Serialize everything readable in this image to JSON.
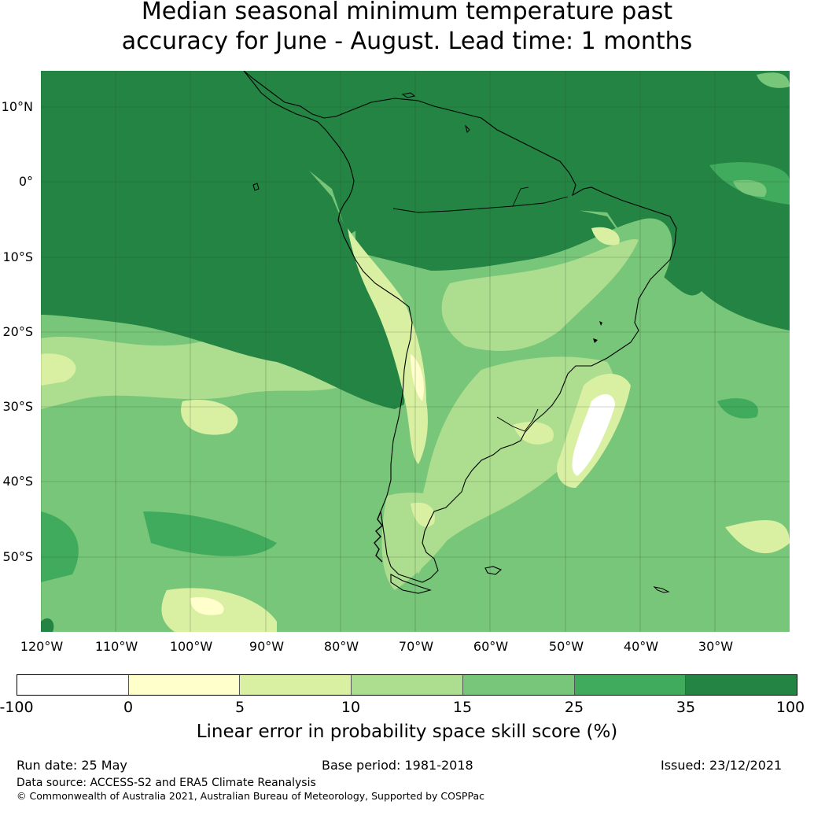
{
  "title": {
    "line1": "Median seasonal minimum temperature past",
    "line2": "accuracy for June - August. Lead time: 1 months"
  },
  "map": {
    "lat_labels": [
      "10°N",
      "0°",
      "10°S",
      "20°S",
      "30°S",
      "40°S",
      "50°S"
    ],
    "lon_labels": [
      "120°W",
      "110°W",
      "100°W",
      "90°W",
      "80°W",
      "70°W",
      "60°W",
      "50°W",
      "40°W",
      "30°W"
    ],
    "colors": {
      "c100": "#ffffff",
      "c0": "#ffffcc",
      "c5": "#d9f0a3",
      "c10": "#addd8e",
      "c15": "#78c679",
      "c25": "#41ab5d",
      "c35": "#238443"
    }
  },
  "colorbar": {
    "ticks": [
      "-100",
      "0",
      "5",
      "10",
      "15",
      "25",
      "35",
      "100"
    ],
    "colors": [
      "#ffffff",
      "#ffffcc",
      "#d9f0a3",
      "#addd8e",
      "#78c679",
      "#41ab5d",
      "#238443"
    ],
    "label": "Linear error in probability space skill score (%)"
  },
  "footer": {
    "run_date": "Run date: 25 May",
    "base_period": "Base period: 1981-2018",
    "issued": "Issued: 23/12/2021",
    "data_source": "Data source: ACCESS-S2 and ERA5 Climate Reanalysis",
    "copyright": "© Commonwealth of Australia 2021, Australian Bureau of Meteorology, Supported by COSPPac"
  }
}
